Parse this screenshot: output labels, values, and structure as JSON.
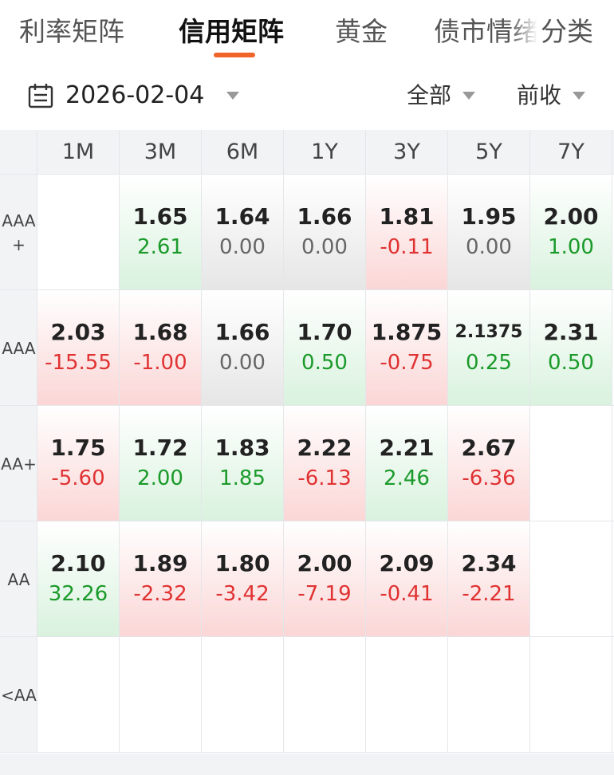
{
  "tabs": [
    {
      "label": "利率矩阵",
      "active": false
    },
    {
      "label": "信用矩阵",
      "active": true
    },
    {
      "label": "黄金",
      "active": false
    },
    {
      "label": "债市情绪",
      "active": false
    },
    {
      "label": "分类",
      "active": false
    }
  ],
  "filters": {
    "date": "2026-02-04",
    "scope": "全部",
    "close": "前收"
  },
  "matrix": {
    "columns": [
      "1M",
      "3M",
      "6M",
      "1Y",
      "3Y",
      "5Y",
      "7Y"
    ],
    "rows": [
      {
        "label": "AAA\n+",
        "cells": [
          null,
          {
            "value": "1.65",
            "change": "2.61",
            "trend": "up"
          },
          {
            "value": "1.64",
            "change": "0.00",
            "trend": "flat"
          },
          {
            "value": "1.66",
            "change": "0.00",
            "trend": "flat"
          },
          {
            "value": "1.81",
            "change": "-0.11",
            "trend": "down"
          },
          {
            "value": "1.95",
            "change": "0.00",
            "trend": "flat"
          },
          {
            "value": "2.00",
            "change": "1.00",
            "trend": "up"
          }
        ]
      },
      {
        "label": "AAA",
        "cells": [
          {
            "value": "2.03",
            "change": "-15.55",
            "trend": "down"
          },
          {
            "value": "1.68",
            "change": "-1.00",
            "trend": "down"
          },
          {
            "value": "1.66",
            "change": "0.00",
            "trend": "flat"
          },
          {
            "value": "1.70",
            "change": "0.50",
            "trend": "up"
          },
          {
            "value": "1.875",
            "change": "-0.75",
            "trend": "down"
          },
          {
            "value": "2.1375",
            "change": "0.25",
            "trend": "up"
          },
          {
            "value": "2.31",
            "change": "0.50",
            "trend": "up"
          }
        ]
      },
      {
        "label": "AA+",
        "cells": [
          {
            "value": "1.75",
            "change": "-5.60",
            "trend": "down"
          },
          {
            "value": "1.72",
            "change": "2.00",
            "trend": "up"
          },
          {
            "value": "1.83",
            "change": "1.85",
            "trend": "up"
          },
          {
            "value": "2.22",
            "change": "-6.13",
            "trend": "down"
          },
          {
            "value": "2.21",
            "change": "2.46",
            "trend": "up"
          },
          {
            "value": "2.67",
            "change": "-6.36",
            "trend": "down"
          },
          null
        ]
      },
      {
        "label": "AA",
        "cells": [
          {
            "value": "2.10",
            "change": "32.26",
            "trend": "up"
          },
          {
            "value": "1.89",
            "change": "-2.32",
            "trend": "down"
          },
          {
            "value": "1.80",
            "change": "-3.42",
            "trend": "down"
          },
          {
            "value": "2.00",
            "change": "-7.19",
            "trend": "down"
          },
          {
            "value": "2.09",
            "change": "-0.41",
            "trend": "down"
          },
          {
            "value": "2.34",
            "change": "-2.21",
            "trend": "down"
          },
          null
        ]
      },
      {
        "label": "<AA",
        "cells": [
          null,
          null,
          null,
          null,
          null,
          null,
          null
        ]
      }
    ]
  },
  "colors": {
    "accent": "#f0642a",
    "up": "#1a9a2a",
    "down": "#e03232",
    "flat": "#666666"
  }
}
